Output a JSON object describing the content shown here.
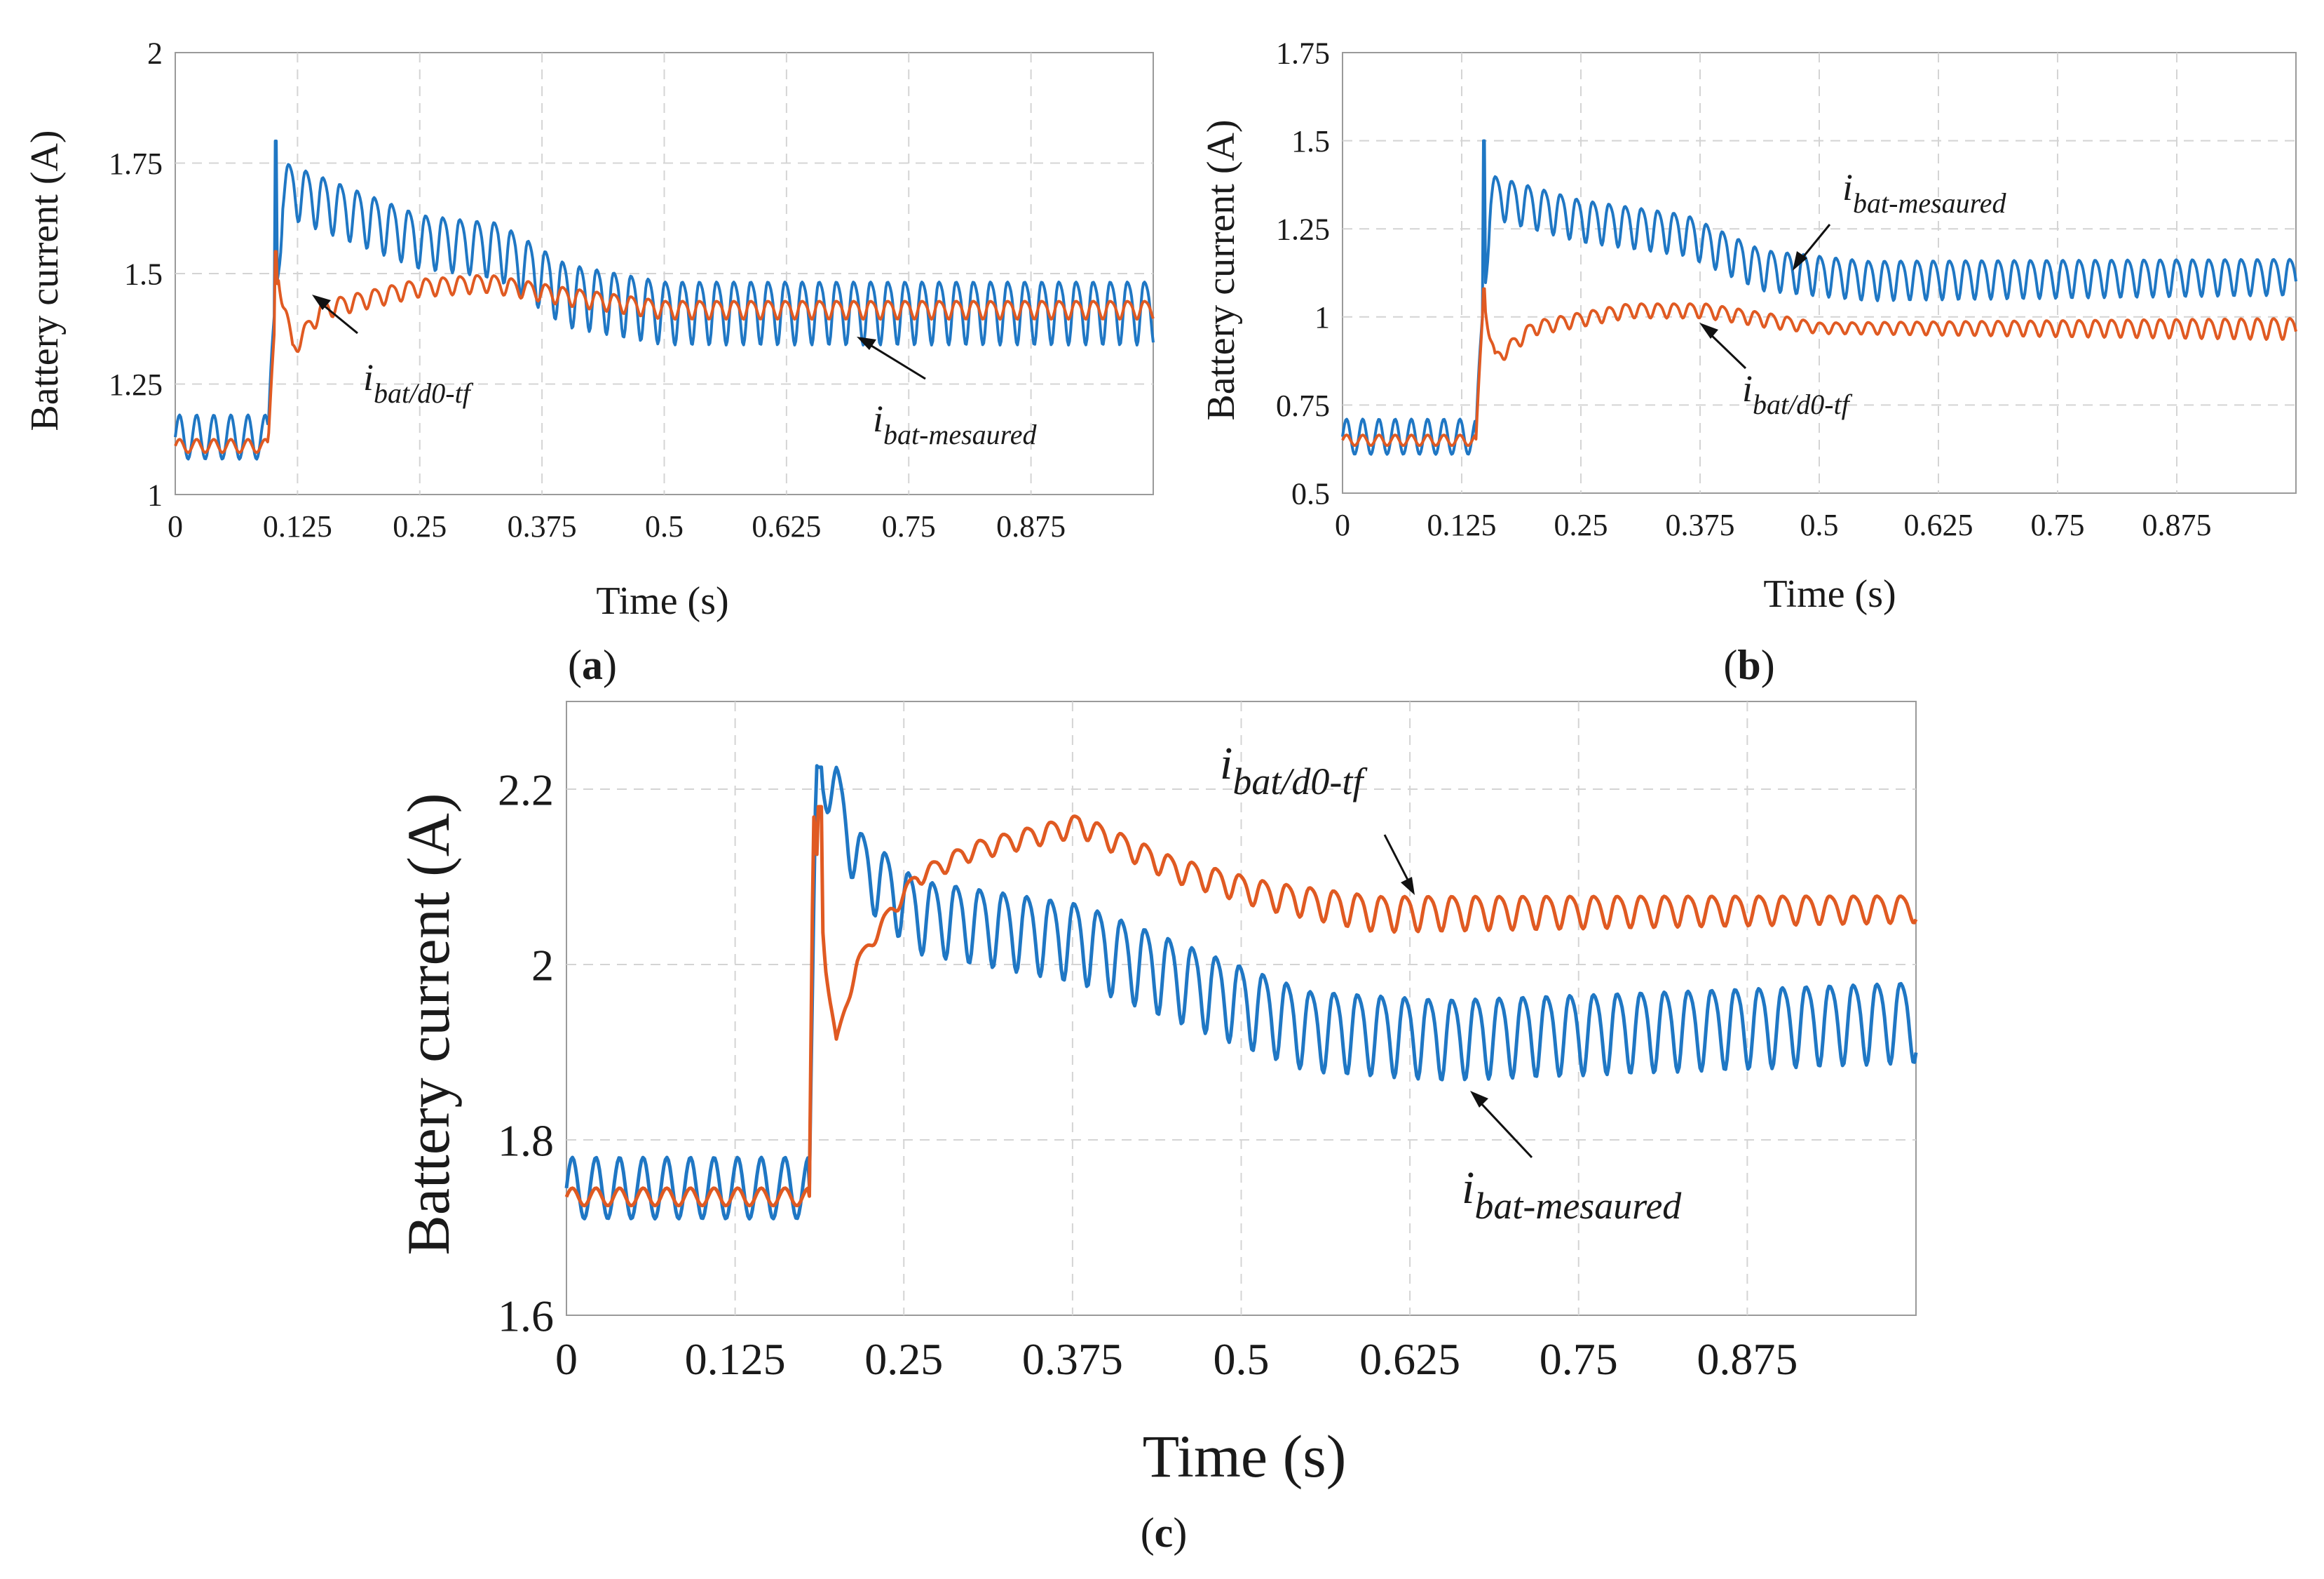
{
  "colors": {
    "measured": "#1f77c4",
    "model": "#e05a22"
  },
  "chart_data": [
    {
      "id": "a",
      "type": "line",
      "caption": "a",
      "xlabel": "Time (s)",
      "ylabel": "Battery current (A)",
      "xlim": [
        0,
        1.0
      ],
      "ylim": [
        1.0,
        2.0
      ],
      "xticks": [
        0,
        0.125,
        0.25,
        0.375,
        0.5,
        0.625,
        0.75,
        0.875
      ],
      "xtick_labels": [
        "0",
        "0.125",
        "0.25",
        "0.375",
        "0.5",
        "0.625",
        "0.75",
        "0.875"
      ],
      "yticks": [
        1,
        1.25,
        1.5,
        1.75,
        2
      ],
      "ytick_labels": [
        "1",
        "1.25",
        "1.5",
        "1.75",
        "2"
      ],
      "grid": true,
      "series": [
        {
          "name": "i_bat-mesaured",
          "color": "#1f77c4",
          "t_step": 0.095,
          "pre_level": 1.13,
          "pre_amp": 0.05,
          "peak": 1.8,
          "settle_points": [
            [
              0.0,
              1.13
            ],
            [
              0.095,
              1.13
            ],
            [
              0.11,
              1.7
            ],
            [
              0.25,
              1.58
            ],
            [
              0.33,
              1.56
            ],
            [
              0.4,
              1.46
            ],
            [
              0.5,
              1.42
            ],
            [
              1.0,
              1.42
            ]
          ],
          "osc_points": [
            [
              0.095,
              0.06
            ],
            [
              0.3,
              0.06
            ],
            [
              0.4,
              0.07
            ],
            [
              1.0,
              0.07
            ]
          ],
          "period": 0.0175
        },
        {
          "name": "i_bat/d0-tf",
          "color": "#e05a22",
          "t_step": 0.095,
          "pre_level": 1.11,
          "pre_amp": 0.015,
          "peak": 1.55,
          "settle_points": [
            [
              0.0,
              1.11
            ],
            [
              0.095,
              1.11
            ],
            [
              0.105,
              1.5
            ],
            [
              0.12,
              1.33
            ],
            [
              0.15,
              1.42
            ],
            [
              0.25,
              1.47
            ],
            [
              0.32,
              1.48
            ],
            [
              0.4,
              1.45
            ],
            [
              0.5,
              1.42
            ],
            [
              1.0,
              1.42
            ]
          ],
          "osc_points": [
            [
              0.095,
              0.02
            ],
            [
              1.0,
              0.02
            ]
          ],
          "period": 0.0175
        }
      ],
      "annotations": [
        {
          "base": "i",
          "sub": "bat/d0-tf",
          "target_series": "i_bat/d0-tf"
        },
        {
          "base": "i",
          "sub": "bat-mesaured",
          "target_series": "i_bat-mesaured"
        }
      ]
    },
    {
      "id": "b",
      "type": "line",
      "caption": "b",
      "xlabel": "Time (s)",
      "ylabel": "Battery current (A)",
      "xlim": [
        0,
        1.0
      ],
      "ylim": [
        0.5,
        1.75
      ],
      "xticks": [
        0,
        0.125,
        0.25,
        0.375,
        0.5,
        0.625,
        0.75,
        0.875
      ],
      "xtick_labels": [
        "0",
        "0.125",
        "0.25",
        "0.375",
        "0.5",
        "0.625",
        "0.75",
        "0.875"
      ],
      "yticks": [
        0.5,
        0.75,
        1,
        1.25,
        1.5,
        1.75
      ],
      "ytick_labels": [
        "0.5",
        "0.75",
        "1",
        "1.25",
        "1.5",
        "1.75"
      ],
      "grid": true,
      "series": [
        {
          "name": "i_bat-mesaured",
          "color": "#1f77c4",
          "t_step": 0.14,
          "pre_level": 0.66,
          "pre_amp": 0.05,
          "peak": 1.5,
          "settle_points": [
            [
              0.0,
              0.66
            ],
            [
              0.14,
              0.66
            ],
            [
              0.155,
              1.35
            ],
            [
              0.25,
              1.28
            ],
            [
              0.36,
              1.24
            ],
            [
              0.44,
              1.14
            ],
            [
              0.55,
              1.11
            ],
            [
              1.0,
              1.12
            ]
          ],
          "osc_points": [
            [
              0.14,
              0.06
            ],
            [
              1.0,
              0.05
            ]
          ],
          "period": 0.017
        },
        {
          "name": "i_bat/d0-tf",
          "color": "#e05a22",
          "t_step": 0.14,
          "pre_level": 0.65,
          "pre_amp": 0.015,
          "peak": 1.08,
          "settle_points": [
            [
              0.0,
              0.65
            ],
            [
              0.14,
              0.65
            ],
            [
              0.148,
              1.05
            ],
            [
              0.16,
              0.88
            ],
            [
              0.2,
              0.97
            ],
            [
              0.3,
              1.02
            ],
            [
              0.38,
              1.02
            ],
            [
              0.5,
              0.97
            ],
            [
              1.0,
              0.97
            ]
          ],
          "osc_points": [
            [
              0.14,
              0.02
            ],
            [
              0.45,
              0.02
            ],
            [
              0.5,
              0.015
            ],
            [
              1.0,
              0.03
            ]
          ],
          "period": 0.017
        }
      ],
      "annotations": [
        {
          "base": "i",
          "sub": "bat-mesaured",
          "target_series": "i_bat-mesaured"
        },
        {
          "base": "i",
          "sub": "bat/d0-tf",
          "target_series": "i_bat/d0-tf"
        }
      ]
    },
    {
      "id": "c",
      "type": "line",
      "caption": "c",
      "xlabel": "Time (s)",
      "ylabel": "Battery current (A)",
      "xlim": [
        0,
        1.0
      ],
      "ylim": [
        1.6,
        2.3
      ],
      "xticks": [
        0,
        0.125,
        0.25,
        0.375,
        0.5,
        0.625,
        0.75,
        0.875
      ],
      "xtick_labels": [
        "0",
        "0.125",
        "0.25",
        "0.375",
        "0.5",
        "0.625",
        "0.75",
        "0.875"
      ],
      "yticks": [
        1.6,
        1.8,
        2,
        2.2
      ],
      "ytick_labels": [
        "1.6",
        "1.8",
        "2",
        "2.2"
      ],
      "grid": true,
      "series": [
        {
          "name": "i_bat-mesaured",
          "color": "#1f77c4",
          "t_step": 0.18,
          "pre_level": 1.745,
          "pre_amp": 0.035,
          "peak": 2.225,
          "settle_points": [
            [
              0.0,
              1.745
            ],
            [
              0.18,
              1.745
            ],
            [
              0.185,
              2.21
            ],
            [
              0.2,
              2.2
            ],
            [
              0.215,
              2.12
            ],
            [
              0.26,
              2.06
            ],
            [
              0.38,
              2.03
            ],
            [
              0.48,
              1.97
            ],
            [
              0.55,
              1.93
            ],
            [
              0.65,
              1.92
            ],
            [
              1.0,
              1.94
            ]
          ],
          "osc_points": [
            [
              0.18,
              0.02
            ],
            [
              0.22,
              0.04
            ],
            [
              0.4,
              0.045
            ],
            [
              1.0,
              0.045
            ]
          ],
          "period": 0.0175
        },
        {
          "name": "i_bat/d0-tf",
          "color": "#e05a22",
          "t_step": 0.18,
          "pre_level": 1.735,
          "pre_amp": 0.01,
          "peak": 2.18,
          "settle_points": [
            [
              0.0,
              1.735
            ],
            [
              0.18,
              1.735
            ],
            [
              0.183,
              2.17
            ],
            [
              0.192,
              2.0
            ],
            [
              0.2,
              1.91
            ],
            [
              0.215,
              2.0
            ],
            [
              0.24,
              2.06
            ],
            [
              0.26,
              2.1
            ],
            [
              0.3,
              2.13
            ],
            [
              0.38,
              2.16
            ],
            [
              0.45,
              2.11
            ],
            [
              0.52,
              2.08
            ],
            [
              0.6,
              2.06
            ],
            [
              1.0,
              2.065
            ]
          ],
          "osc_points": [
            [
              0.18,
              0.005
            ],
            [
              0.28,
              0.01
            ],
            [
              0.5,
              0.015
            ],
            [
              0.6,
              0.02
            ],
            [
              1.0,
              0.015
            ]
          ],
          "period": 0.0175
        }
      ],
      "annotations": [
        {
          "base": "i",
          "sub": "bat/d0-tf",
          "target_series": "i_bat/d0-tf"
        },
        {
          "base": "i",
          "sub": "bat-mesaured",
          "target_series": "i_bat-mesaured"
        }
      ]
    }
  ]
}
